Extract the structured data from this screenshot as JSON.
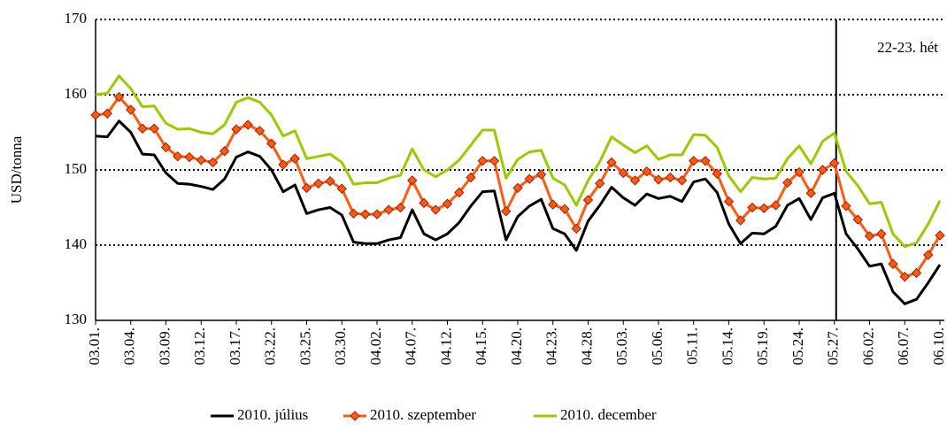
{
  "chart_data": {
    "type": "line",
    "ylabel": "USD/tonna",
    "annotation": "22-23. hét",
    "vline": "05.27.",
    "categories": [
      "03.01.",
      null,
      null,
      "03.04.",
      null,
      null,
      "03.09.",
      null,
      null,
      "03.12.",
      null,
      null,
      "03.17.",
      null,
      null,
      "03.22.",
      null,
      null,
      "03.25.",
      null,
      null,
      "03.30.",
      null,
      null,
      "04.02.",
      null,
      null,
      "04.07.",
      null,
      null,
      "04.12.",
      null,
      null,
      "04.15.",
      null,
      null,
      "04.20.",
      null,
      null,
      "04.23.",
      null,
      null,
      "04.28.",
      null,
      null,
      "05.03.",
      null,
      null,
      "05.06.",
      null,
      null,
      "05.11.",
      null,
      null,
      "05.14.",
      null,
      null,
      "05.19.",
      null,
      null,
      "05.24.",
      null,
      null,
      "05.27.",
      null,
      null,
      "06.02.",
      null,
      null,
      "06.07.",
      null,
      null,
      "06.10."
    ],
    "series": [
      {
        "name": "2010. július",
        "color": "#000000",
        "marker": false,
        "values": [
          154.5,
          154.4,
          156.5,
          155.0,
          152.1,
          152.0,
          149.6,
          148.2,
          148.1,
          147.8,
          147.4,
          148.8,
          151.7,
          152.4,
          151.8,
          150.0,
          147.1,
          148.0,
          144.2,
          144.7,
          145.0,
          144.0,
          140.4,
          140.2,
          140.2,
          140.7,
          141.0,
          144.7,
          141.5,
          140.7,
          141.5,
          143.0,
          145.2,
          147.1,
          147.2,
          140.7,
          143.8,
          145.2,
          146.1,
          142.2,
          141.5,
          139.3,
          143.2,
          145.3,
          147.7,
          146.3,
          145.3,
          146.8,
          146.2,
          146.5,
          145.8,
          148.4,
          148.8,
          147.0,
          142.8,
          140.2,
          141.6,
          141.5,
          142.5,
          145.3,
          146.2,
          143.4,
          146.3,
          146.9,
          141.5,
          139.5,
          137.2,
          137.5,
          133.8,
          132.2,
          132.8,
          135.0,
          137.4
        ]
      },
      {
        "name": "2010. szeptember",
        "color": "#ff5a10",
        "marker": true,
        "values": [
          157.3,
          157.5,
          159.7,
          158.0,
          155.5,
          155.5,
          153.0,
          151.8,
          151.7,
          151.3,
          151.0,
          152.5,
          155.4,
          156.0,
          155.2,
          153.5,
          150.7,
          151.5,
          147.6,
          148.2,
          148.5,
          147.5,
          144.2,
          144.1,
          144.1,
          144.7,
          145.0,
          148.6,
          145.6,
          144.7,
          145.5,
          147.0,
          149.0,
          151.2,
          151.2,
          144.5,
          147.6,
          148.8,
          149.4,
          145.4,
          144.8,
          142.2,
          146.0,
          148.2,
          151.0,
          149.6,
          148.6,
          149.8,
          148.7,
          149.0,
          148.6,
          151.2,
          151.2,
          149.5,
          145.8,
          143.3,
          145.0,
          144.9,
          145.3,
          148.3,
          149.7,
          146.9,
          150.0,
          150.9,
          145.2,
          143.4,
          141.2,
          141.5,
          137.5,
          135.8,
          136.3,
          138.7,
          141.3
        ]
      },
      {
        "name": "2010. december",
        "color": "#99cc00",
        "marker": false,
        "values": [
          160.0,
          160.2,
          162.5,
          160.8,
          158.4,
          158.5,
          156.2,
          155.4,
          155.5,
          155.0,
          154.8,
          156.0,
          159.0,
          159.6,
          159.0,
          157.3,
          154.5,
          155.2,
          151.5,
          151.8,
          152.1,
          151.0,
          148.1,
          148.3,
          148.3,
          148.9,
          149.3,
          152.8,
          150.0,
          149.1,
          150.0,
          151.3,
          153.3,
          155.3,
          155.3,
          148.9,
          151.4,
          152.4,
          152.6,
          148.9,
          148.0,
          145.3,
          148.6,
          151.1,
          154.4,
          153.3,
          152.3,
          153.2,
          151.4,
          152.0,
          152.0,
          154.7,
          154.6,
          153.0,
          149.2,
          147.1,
          149.0,
          148.8,
          148.9,
          151.5,
          153.2,
          150.8,
          153.8,
          154.9,
          149.8,
          147.9,
          145.5,
          145.7,
          141.5,
          139.8,
          140.3,
          142.8,
          145.9
        ]
      }
    ],
    "ylim": [
      130,
      170
    ],
    "yticks": [
      130,
      140,
      150,
      160,
      170
    ],
    "grid": true,
    "legend": "bottom"
  }
}
